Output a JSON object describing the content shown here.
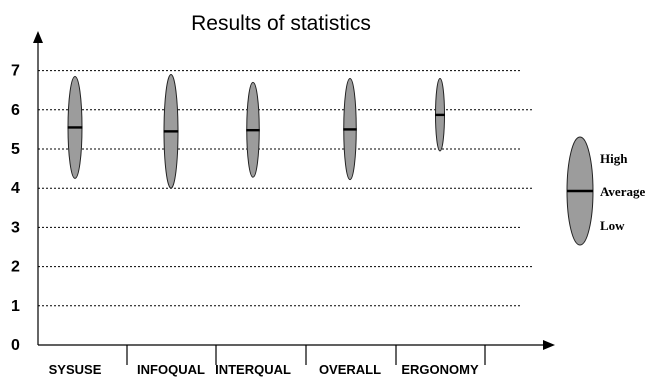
{
  "chart_data": {
    "type": "range",
    "title": "Results of statistics",
    "xlabel": "",
    "ylabel": "",
    "ylim": [
      0,
      7
    ],
    "yticks": [
      "0",
      "1",
      "2",
      "3",
      "4",
      "5",
      "6",
      "7"
    ],
    "grid": true,
    "categories": [
      "SYSUSE",
      "INFOQUAL",
      "INTERQUAL",
      "OVERALL",
      "ERGONOMY"
    ],
    "series": [
      {
        "name": "High",
        "values": [
          6.85,
          6.9,
          6.7,
          6.8,
          6.8
        ]
      },
      {
        "name": "Average",
        "values": [
          5.55,
          5.45,
          5.48,
          5.5,
          5.87
        ]
      },
      {
        "name": "Low",
        "values": [
          4.25,
          4.0,
          4.28,
          4.22,
          4.95
        ]
      }
    ],
    "legend": {
      "position": "right",
      "labels": [
        "High",
        "Average",
        "Low"
      ]
    }
  }
}
